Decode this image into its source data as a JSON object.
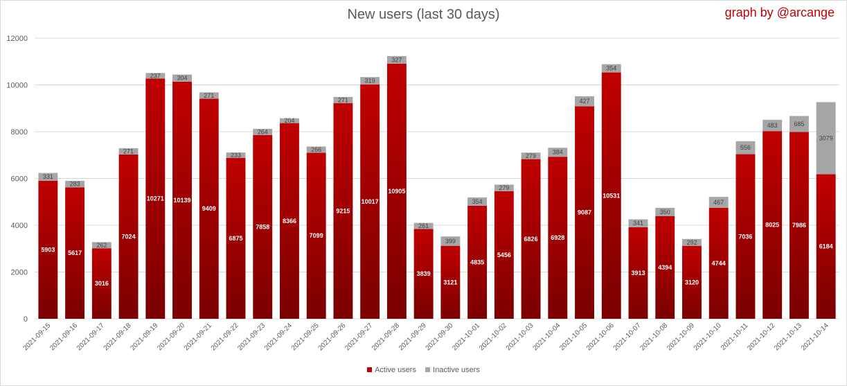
{
  "chart_data": {
    "type": "bar",
    "stacked": true,
    "title": "New users (last 30 days)",
    "credit": "graph by @arcange",
    "categories": [
      "2021-09-15",
      "2021-09-16",
      "2021-09-17",
      "2021-09-18",
      "2021-09-19",
      "2021-09-20",
      "2021-09-21",
      "2021-09-22",
      "2021-09-23",
      "2021-09-24",
      "2021-09-25",
      "2021-09-26",
      "2021-09-27",
      "2021-09-28",
      "2021-09-29",
      "2021-09-30",
      "2021-10-01",
      "2021-10-02",
      "2021-10-03",
      "2021-10-04",
      "2021-10-05",
      "2021-10-06",
      "2021-10-07",
      "2021-10-08",
      "2021-10-09",
      "2021-10-10",
      "2021-10-11",
      "2021-10-12",
      "2021-10-13",
      "2021-10-14"
    ],
    "series": [
      {
        "name": "Active users",
        "color": "#c00000",
        "values": [
          5903,
          5617,
          3016,
          7024,
          10271,
          10139,
          9409,
          6875,
          7858,
          8366,
          7099,
          9215,
          10017,
          10905,
          3839,
          3121,
          4835,
          5456,
          6826,
          6928,
          9087,
          10531,
          3913,
          4394,
          3120,
          4744,
          7036,
          8025,
          7986,
          6184
        ]
      },
      {
        "name": "Inactive users",
        "color": "#a6a6a6",
        "values": [
          331,
          283,
          262,
          271,
          237,
          304,
          271,
          233,
          264,
          204,
          266,
          271,
          319,
          327,
          261,
          399,
          354,
          279,
          279,
          384,
          427,
          354,
          341,
          350,
          292,
          467,
          556,
          483,
          685,
          3079
        ]
      }
    ],
    "ylim": [
      0,
      12000
    ],
    "yticks": [
      0,
      2000,
      4000,
      6000,
      8000,
      10000,
      12000
    ],
    "grid": true,
    "legend": "bottom"
  }
}
